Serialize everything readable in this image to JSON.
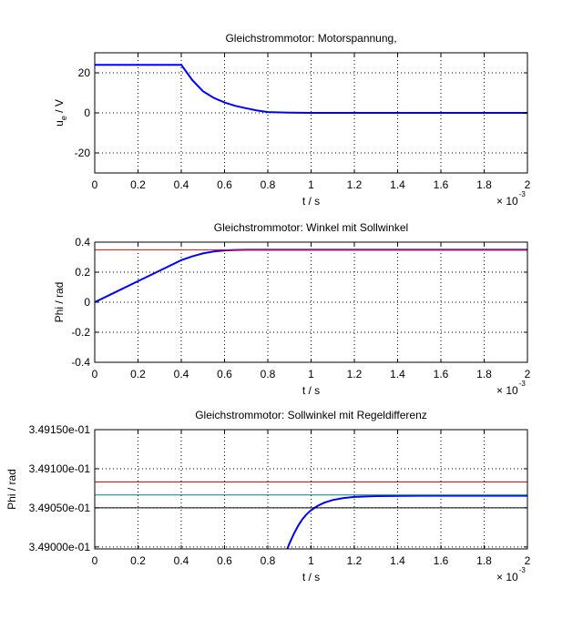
{
  "chart_data": [
    {
      "type": "line",
      "title": "Gleichstrommotor: Motorspannung,",
      "xlabel": "t / s",
      "ylabel_main": "u",
      "ylabel_sub": "e",
      "ylabel_unit": " / V",
      "xlim": [
        0,
        0.002
      ],
      "ylim": [
        -30,
        30
      ],
      "xticks": [
        "0",
        "0.2",
        "0.4",
        "0.6",
        "0.8",
        "1",
        "1.2",
        "1.4",
        "1.6",
        "1.8",
        "2"
      ],
      "yticks": [
        {
          "value": -20,
          "label": "-20"
        },
        {
          "value": 0,
          "label": "0"
        },
        {
          "value": 20,
          "label": "20"
        }
      ],
      "x_multiplier": "× 10",
      "x_multiplier_exp": "-3",
      "grid": true,
      "series": [
        {
          "color": "#0000ff",
          "x": [
            0,
            0.0002,
            0.0004,
            0.00041,
            0.00045,
            0.0005,
            0.00055,
            0.0006,
            0.00065,
            0.0007,
            0.00075,
            0.0008,
            0.0009,
            0.001,
            0.0012,
            0.0015,
            0.002
          ],
          "y": [
            24,
            24,
            24,
            22.5,
            16.5,
            10.8,
            7.5,
            5.2,
            3.5,
            2.3,
            1.2,
            0.4,
            0.1,
            0,
            0,
            0,
            0
          ]
        }
      ]
    },
    {
      "type": "line",
      "title": "Gleichstrommotor: Winkel mit Sollwinkel",
      "xlabel": "t / s",
      "ylabel": "Phi / rad",
      "xlim": [
        0,
        0.002
      ],
      "ylim": [
        -0.4,
        0.4
      ],
      "xticks": [
        "0",
        "0.2",
        "0.4",
        "0.6",
        "0.8",
        "1",
        "1.2",
        "1.4",
        "1.6",
        "1.8",
        "2"
      ],
      "yticks": [
        {
          "value": -0.4,
          "label": "-0.4"
        },
        {
          "value": -0.2,
          "label": "-0.2"
        },
        {
          "value": 0,
          "label": "0"
        },
        {
          "value": 0.2,
          "label": "0.2"
        },
        {
          "value": 0.4,
          "label": "0.4"
        }
      ],
      "x_multiplier": "× 10",
      "x_multiplier_exp": "-3",
      "grid": true,
      "series": [
        {
          "color": "#0000ff",
          "x": [
            0,
            0.0001,
            0.0002,
            0.0003,
            0.0004,
            0.00045,
            0.0005,
            0.00055,
            0.0006,
            0.00065,
            0.0007,
            0.0008,
            0.001,
            0.0015,
            0.002
          ],
          "y": [
            0,
            0.07,
            0.14,
            0.21,
            0.28,
            0.305,
            0.325,
            0.338,
            0.345,
            0.348,
            0.349,
            0.349,
            0.349,
            0.349,
            0.349
          ]
        },
        {
          "color": "#ff0000",
          "x": [
            0,
            0.002
          ],
          "y": [
            0.349,
            0.349
          ]
        }
      ]
    },
    {
      "type": "line",
      "title": "Gleichstrommotor: Sollwinkel mit Regeldifferenz",
      "xlabel": "t / s",
      "ylabel": "Phi / rad",
      "xlim": [
        0,
        0.002
      ],
      "ylim": [
        0.3489975,
        0.34915
      ],
      "xticks": [
        "0",
        "0.2",
        "0.4",
        "0.6",
        "0.8",
        "1",
        "1.2",
        "1.4",
        "1.6",
        "1.8",
        "2"
      ],
      "yticks": [
        {
          "value": 0.349,
          "label": "3.49000e-01"
        },
        {
          "value": 0.34905,
          "label": "3.49050e-01"
        },
        {
          "value": 0.3491,
          "label": "3.49100e-01"
        },
        {
          "value": 0.34915,
          "label": "3.49150e-01"
        }
      ],
      "x_multiplier": "× 10",
      "x_multiplier_exp": "-3",
      "grid": true,
      "series": [
        {
          "color": "#0000ff",
          "x": [
            0.00089,
            0.0009,
            0.00092,
            0.00094,
            0.00096,
            0.00098,
            0.001,
            0.00103,
            0.00106,
            0.0011,
            0.00115,
            0.0012,
            0.0013,
            0.0015,
            0.0018,
            0.002
          ],
          "y": [
            0.3489975,
            0.3490045,
            0.3490165,
            0.349027,
            0.3490355,
            0.349042,
            0.349047,
            0.3490525,
            0.3490565,
            0.34906,
            0.3490625,
            0.349064,
            0.349065,
            0.3490655,
            0.3490655,
            0.3490655
          ]
        },
        {
          "color": "#ff0000",
          "x": [
            0,
            0.002
          ],
          "y": [
            0.349083,
            0.349083
          ]
        },
        {
          "color": "#008080",
          "x": [
            0,
            0.002
          ],
          "y": [
            0.3490665,
            0.3490665
          ]
        },
        {
          "color": "#000000",
          "x": [
            0,
            0.002
          ],
          "y": [
            0.34905,
            0.34905
          ]
        }
      ]
    }
  ]
}
